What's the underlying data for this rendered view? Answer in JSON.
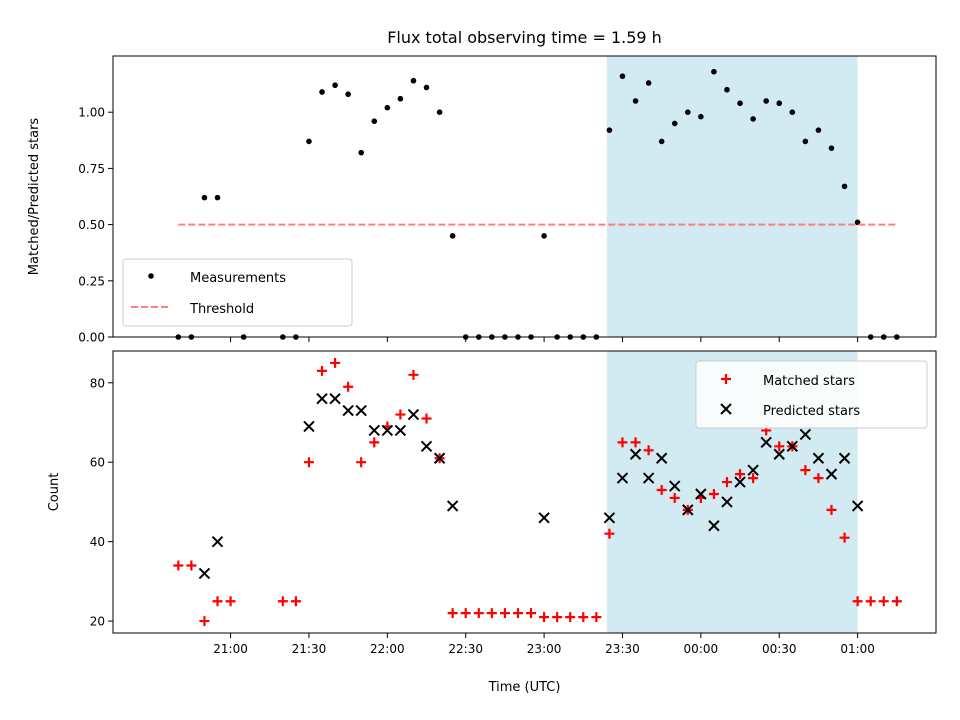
{
  "chart_data": {
    "type": "scatter",
    "title": "Flux total observing time = 1.59 h",
    "xlabel": "Time (UTC)",
    "x_ticks": [
      "21:00",
      "21:30",
      "22:00",
      "22:30",
      "23:00",
      "23:30",
      "00:00",
      "00:30",
      "01:00"
    ],
    "shaded_interval": [
      "23:24",
      "01:00"
    ],
    "shade_color": "#add8e6",
    "top": {
      "ylabel": "Matched/Predicted stars",
      "ylim": [
        0,
        1.25
      ],
      "y_ticks": [
        "0.00",
        "0.25",
        "0.50",
        "0.75",
        "1.00"
      ],
      "legend_position": "lower-left",
      "series": [
        {
          "name": "Measurements",
          "marker": "dot",
          "color": "#000000",
          "points": [
            [
              "20:40",
              0.0
            ],
            [
              "20:45",
              0.0
            ],
            [
              "20:50",
              0.62
            ],
            [
              "20:55",
              0.62
            ],
            [
              "21:05",
              0.0
            ],
            [
              "21:20",
              0.0
            ],
            [
              "21:25",
              0.0
            ],
            [
              "21:30",
              0.87
            ],
            [
              "21:35",
              1.09
            ],
            [
              "21:40",
              1.12
            ],
            [
              "21:45",
              1.08
            ],
            [
              "21:50",
              0.82
            ],
            [
              "21:55",
              0.96
            ],
            [
              "22:00",
              1.02
            ],
            [
              "22:05",
              1.06
            ],
            [
              "22:10",
              1.14
            ],
            [
              "22:15",
              1.11
            ],
            [
              "22:20",
              1.0
            ],
            [
              "22:25",
              0.45
            ],
            [
              "22:30",
              0.0
            ],
            [
              "22:35",
              0.0
            ],
            [
              "22:40",
              0.0
            ],
            [
              "22:45",
              0.0
            ],
            [
              "22:50",
              0.0
            ],
            [
              "22:55",
              0.0
            ],
            [
              "23:00",
              0.45
            ],
            [
              "23:05",
              0.0
            ],
            [
              "23:10",
              0.0
            ],
            [
              "23:15",
              0.0
            ],
            [
              "23:20",
              0.0
            ],
            [
              "23:25",
              0.92
            ],
            [
              "23:30",
              1.16
            ],
            [
              "23:35",
              1.05
            ],
            [
              "23:40",
              1.13
            ],
            [
              "23:45",
              0.87
            ],
            [
              "23:50",
              0.95
            ],
            [
              "23:55",
              1.0
            ],
            [
              "00:00",
              0.98
            ],
            [
              "00:05",
              1.18
            ],
            [
              "00:10",
              1.1
            ],
            [
              "00:15",
              1.04
            ],
            [
              "00:20",
              0.97
            ],
            [
              "00:25",
              1.05
            ],
            [
              "00:30",
              1.04
            ],
            [
              "00:35",
              1.0
            ],
            [
              "00:40",
              0.87
            ],
            [
              "00:45",
              0.92
            ],
            [
              "00:50",
              0.84
            ],
            [
              "00:55",
              0.67
            ],
            [
              "01:00",
              0.51
            ],
            [
              "01:05",
              0.0
            ],
            [
              "01:10",
              0.0
            ],
            [
              "01:15",
              0.0
            ]
          ]
        },
        {
          "name": "Threshold",
          "marker": "dashed-line",
          "color": "#ff7f7f",
          "points": [
            [
              "20:40",
              0.5
            ],
            [
              "01:15",
              0.5
            ]
          ]
        }
      ]
    },
    "bottom": {
      "ylabel": "Count",
      "ylim": [
        17,
        88
      ],
      "y_ticks": [
        "20",
        "40",
        "60",
        "80"
      ],
      "legend_position": "upper-right",
      "series": [
        {
          "name": "Matched stars",
          "marker": "plus",
          "color": "#ff0000",
          "points": [
            [
              "20:40",
              34
            ],
            [
              "20:45",
              34
            ],
            [
              "20:50",
              20
            ],
            [
              "20:55",
              25
            ],
            [
              "21:00",
              25
            ],
            [
              "21:20",
              25
            ],
            [
              "21:25",
              25
            ],
            [
              "21:30",
              60
            ],
            [
              "21:35",
              83
            ],
            [
              "21:40",
              85
            ],
            [
              "21:45",
              79
            ],
            [
              "21:50",
              60
            ],
            [
              "21:55",
              65
            ],
            [
              "22:00",
              69
            ],
            [
              "22:05",
              72
            ],
            [
              "22:10",
              82
            ],
            [
              "22:15",
              71
            ],
            [
              "22:20",
              61
            ],
            [
              "22:25",
              22
            ],
            [
              "22:30",
              22
            ],
            [
              "22:35",
              22
            ],
            [
              "22:40",
              22
            ],
            [
              "22:45",
              22
            ],
            [
              "22:50",
              22
            ],
            [
              "22:55",
              22
            ],
            [
              "23:00",
              21
            ],
            [
              "23:05",
              21
            ],
            [
              "23:10",
              21
            ],
            [
              "23:15",
              21
            ],
            [
              "23:20",
              21
            ],
            [
              "23:25",
              42
            ],
            [
              "23:30",
              65
            ],
            [
              "23:35",
              65
            ],
            [
              "23:40",
              63
            ],
            [
              "23:45",
              53
            ],
            [
              "23:50",
              51
            ],
            [
              "23:55",
              48
            ],
            [
              "00:00",
              51
            ],
            [
              "00:05",
              52
            ],
            [
              "00:10",
              55
            ],
            [
              "00:15",
              57
            ],
            [
              "00:20",
              56
            ],
            [
              "00:25",
              68
            ],
            [
              "00:30",
              64
            ],
            [
              "00:35",
              64
            ],
            [
              "00:40",
              58
            ],
            [
              "00:45",
              56
            ],
            [
              "00:50",
              48
            ],
            [
              "00:55",
              41
            ],
            [
              "01:00",
              25
            ],
            [
              "01:05",
              25
            ],
            [
              "01:10",
              25
            ],
            [
              "01:15",
              25
            ]
          ]
        },
        {
          "name": "Predicted stars",
          "marker": "x",
          "color": "#000000",
          "points": [
            [
              "20:50",
              32
            ],
            [
              "20:55",
              40
            ],
            [
              "21:30",
              69
            ],
            [
              "21:35",
              76
            ],
            [
              "21:40",
              76
            ],
            [
              "21:45",
              73
            ],
            [
              "21:50",
              73
            ],
            [
              "21:55",
              68
            ],
            [
              "22:00",
              68
            ],
            [
              "22:05",
              68
            ],
            [
              "22:10",
              72
            ],
            [
              "22:15",
              64
            ],
            [
              "22:20",
              61
            ],
            [
              "22:25",
              49
            ],
            [
              "23:00",
              46
            ],
            [
              "23:25",
              46
            ],
            [
              "23:30",
              56
            ],
            [
              "23:35",
              62
            ],
            [
              "23:40",
              56
            ],
            [
              "23:45",
              61
            ],
            [
              "23:50",
              54
            ],
            [
              "23:55",
              48
            ],
            [
              "00:00",
              52
            ],
            [
              "00:05",
              44
            ],
            [
              "00:10",
              50
            ],
            [
              "00:15",
              55
            ],
            [
              "00:20",
              58
            ],
            [
              "00:25",
              65
            ],
            [
              "00:30",
              62
            ],
            [
              "00:35",
              64
            ],
            [
              "00:40",
              67
            ],
            [
              "00:45",
              61
            ],
            [
              "00:50",
              57
            ],
            [
              "00:55",
              61
            ],
            [
              "01:00",
              49
            ]
          ]
        }
      ]
    }
  }
}
